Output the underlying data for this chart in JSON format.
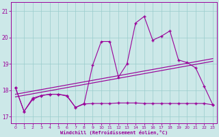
{
  "xlabel": "Windchill (Refroidissement éolien,°C)",
  "xlim": [
    -0.5,
    23.5
  ],
  "ylim": [
    16.75,
    21.35
  ],
  "yticks": [
    17,
    18,
    19,
    20,
    21
  ],
  "xticks": [
    0,
    1,
    2,
    3,
    4,
    5,
    6,
    7,
    8,
    9,
    10,
    11,
    12,
    13,
    14,
    15,
    16,
    17,
    18,
    19,
    20,
    21,
    22,
    23
  ],
  "bg_color": "#cce8e8",
  "grid_color": "#99cccc",
  "line_color": "#990099",
  "temp_y": [
    18.1,
    17.2,
    17.7,
    17.8,
    17.85,
    17.85,
    17.8,
    17.35,
    17.5,
    18.95,
    19.85,
    19.85,
    18.5,
    19.0,
    20.55,
    20.8,
    19.9,
    20.05,
    20.25,
    19.15,
    19.05,
    18.85,
    18.15,
    17.45
  ],
  "wc_y": [
    18.1,
    17.2,
    17.65,
    17.8,
    17.85,
    17.85,
    17.78,
    17.35,
    17.48,
    17.5,
    17.5,
    17.5,
    17.52,
    17.52,
    17.52,
    17.5,
    17.5,
    17.5,
    17.5,
    17.5,
    17.5,
    17.5,
    17.5,
    17.45
  ],
  "lin1": [
    17.85,
    19.2
  ],
  "lin2": [
    17.75,
    19.1
  ]
}
